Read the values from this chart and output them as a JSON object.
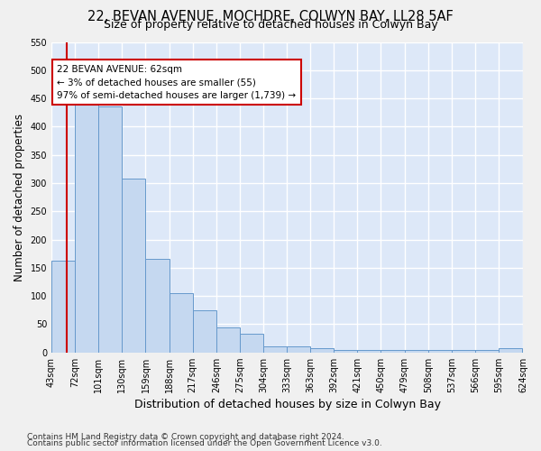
{
  "title": "22, BEVAN AVENUE, MOCHDRE, COLWYN BAY, LL28 5AF",
  "subtitle": "Size of property relative to detached houses in Colwyn Bay",
  "xlabel": "Distribution of detached houses by size in Colwyn Bay",
  "ylabel": "Number of detached properties",
  "bar_values": [
    163,
    450,
    435,
    308,
    165,
    105,
    74,
    45,
    33,
    10,
    10,
    8,
    5,
    5,
    5,
    5,
    5,
    5,
    5,
    7
  ],
  "bar_labels": [
    "43sqm",
    "72sqm",
    "101sqm",
    "130sqm",
    "159sqm",
    "188sqm",
    "217sqm",
    "246sqm",
    "275sqm",
    "304sqm",
    "333sqm",
    "363sqm",
    "392sqm",
    "421sqm",
    "450sqm",
    "479sqm",
    "508sqm",
    "537sqm",
    "566sqm",
    "595sqm",
    "624sqm"
  ],
  "bar_color": "#c5d8f0",
  "bar_edge_color": "#6699cc",
  "ylim": [
    0,
    550
  ],
  "yticks": [
    0,
    50,
    100,
    150,
    200,
    250,
    300,
    350,
    400,
    450,
    500,
    550
  ],
  "annotation_text": "22 BEVAN AVENUE: 62sqm\n← 3% of detached houses are smaller (55)\n97% of semi-detached houses are larger (1,739) →",
  "annotation_box_color": "#ffffff",
  "annotation_box_edge": "#cc0000",
  "footer_line1": "Contains HM Land Registry data © Crown copyright and database right 2024.",
  "footer_line2": "Contains public sector information licensed under the Open Government Licence v3.0.",
  "background_color": "#dde8f8",
  "grid_color": "#ffffff",
  "title_fontsize": 10.5,
  "subtitle_fontsize": 9,
  "tick_fontsize": 7,
  "ylabel_fontsize": 8.5,
  "xlabel_fontsize": 9,
  "footer_fontsize": 6.5
}
